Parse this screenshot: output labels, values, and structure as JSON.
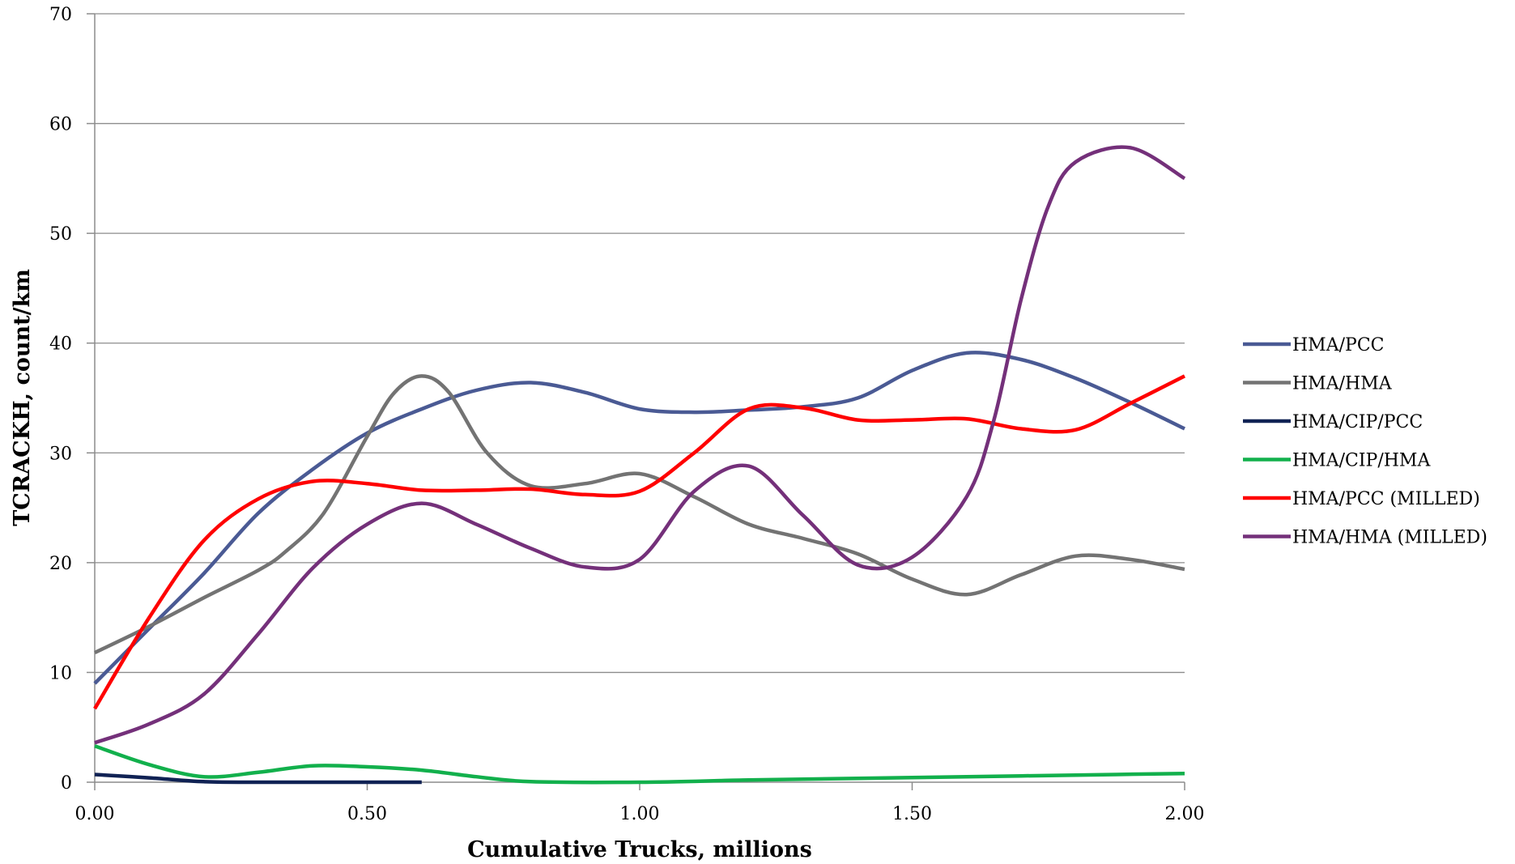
{
  "chart_data": {
    "type": "line",
    "title": "",
    "xlabel": "Cumulative Trucks, millions",
    "ylabel": "TCRACKH, count/km",
    "xlim": [
      0,
      2
    ],
    "ylim": [
      0,
      70
    ],
    "x_ticks": [
      0,
      0.5,
      1,
      1.5,
      2
    ],
    "x_tick_labels": [
      "0.00",
      "0.50",
      "1.00",
      "1.50",
      "2.00"
    ],
    "y_ticks": [
      0,
      10,
      20,
      30,
      40,
      50,
      60,
      70
    ],
    "y_tick_labels": [
      "0",
      "10",
      "20",
      "30",
      "40",
      "50",
      "60",
      "70"
    ],
    "grid": true,
    "legend_position": "right",
    "series": [
      {
        "name": "HMA/PCC",
        "color": "#4a5a94",
        "x": [
          0.0,
          0.1,
          0.2,
          0.3,
          0.4,
          0.5,
          0.6,
          0.7,
          0.8,
          0.9,
          1.0,
          1.1,
          1.2,
          1.3,
          1.4,
          1.5,
          1.6,
          1.7,
          1.8,
          1.9,
          2.0
        ],
        "y": [
          9,
          14,
          19,
          24.5,
          28.5,
          31.8,
          34,
          35.7,
          36.4,
          35.5,
          34,
          33.7,
          33.9,
          34.2,
          35,
          37.5,
          39.1,
          38.5,
          36.8,
          34.6,
          32.2
        ]
      },
      {
        "name": "HMA/HMA",
        "color": "#737373",
        "x": [
          0.0,
          0.1,
          0.2,
          0.3,
          0.35,
          0.42,
          0.5,
          0.55,
          0.6,
          0.65,
          0.72,
          0.8,
          0.9,
          1.0,
          1.1,
          1.2,
          1.3,
          1.4,
          1.5,
          1.6,
          1.7,
          1.8,
          1.9,
          2.0
        ],
        "y": [
          11.8,
          14.2,
          16.8,
          19.3,
          21,
          24.5,
          31.5,
          35.5,
          37,
          35.5,
          30,
          27,
          27.2,
          28.1,
          26,
          23.5,
          22.2,
          20.8,
          18.5,
          17.1,
          18.9,
          20.6,
          20.3,
          19.4
        ]
      },
      {
        "name": "HMA/CIP/PCC",
        "color": "#102254",
        "x": [
          0.0,
          0.1,
          0.2,
          0.3,
          0.4,
          0.5,
          0.6
        ],
        "y": [
          0.7,
          0.4,
          0.05,
          0,
          0,
          0,
          0
        ]
      },
      {
        "name": "HMA/CIP/HMA",
        "color": "#12b04c",
        "x": [
          0.0,
          0.1,
          0.2,
          0.3,
          0.4,
          0.5,
          0.6,
          0.7,
          0.8,
          1.0,
          1.2,
          1.4,
          1.6,
          1.8,
          2.0
        ],
        "y": [
          3.3,
          1.6,
          0.5,
          0.9,
          1.5,
          1.4,
          1.1,
          0.5,
          0.05,
          0,
          0.2,
          0.35,
          0.5,
          0.65,
          0.8
        ]
      },
      {
        "name": "HMA/PCC (MILLED)",
        "color": "#ff0000",
        "x": [
          0.0,
          0.1,
          0.2,
          0.3,
          0.4,
          0.5,
          0.6,
          0.7,
          0.8,
          0.9,
          1.0,
          1.1,
          1.2,
          1.3,
          1.4,
          1.5,
          1.6,
          1.7,
          1.8,
          1.9,
          2.0
        ],
        "y": [
          6.7,
          15,
          22,
          25.8,
          27.4,
          27.2,
          26.6,
          26.6,
          26.7,
          26.2,
          26.5,
          30,
          34,
          34.1,
          33,
          33,
          33.1,
          32.2,
          32.1,
          34.5,
          37
        ]
      },
      {
        "name": "HMA/HMA (MILLED)",
        "color": "#74307a",
        "x": [
          0.0,
          0.1,
          0.2,
          0.3,
          0.4,
          0.5,
          0.6,
          0.7,
          0.8,
          0.9,
          1.0,
          1.1,
          1.2,
          1.3,
          1.4,
          1.5,
          1.6,
          1.65,
          1.7,
          1.75,
          1.8,
          1.9,
          2.0
        ],
        "y": [
          3.6,
          5.3,
          8,
          13.5,
          19.5,
          23.5,
          25.4,
          23.5,
          21.3,
          19.6,
          20.3,
          26.5,
          28.8,
          24.3,
          19.8,
          20.5,
          26,
          33,
          44,
          52.5,
          56.5,
          57.8,
          55
        ]
      }
    ]
  }
}
